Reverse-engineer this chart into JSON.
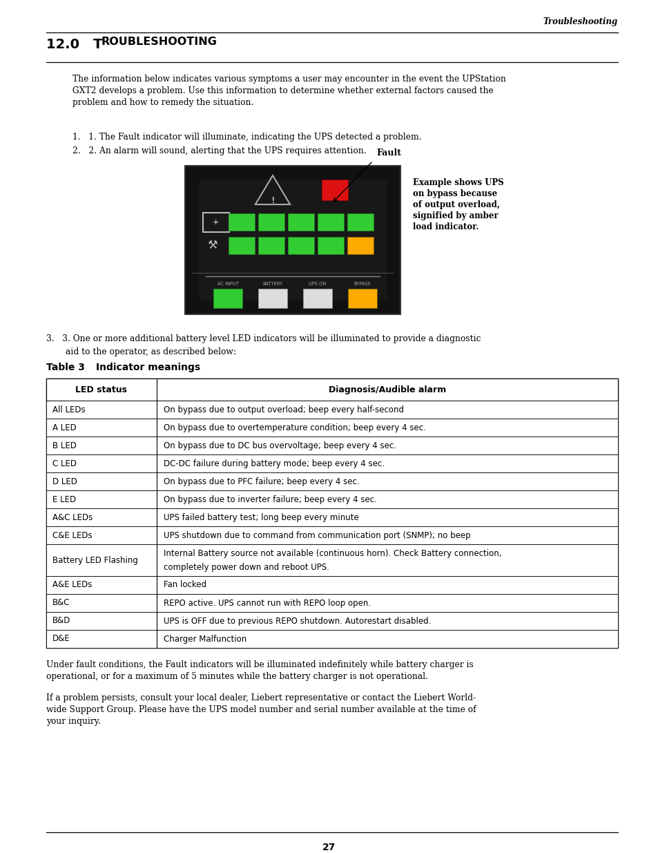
{
  "header_text": "Troubleshooting",
  "title_number": "12.0",
  "title_sc": "TROUBLESHOOTING",
  "intro_paragraph": "The information below indicates various symptoms a user may encounter in the event the UPStation GXT2 develops a problem. Use this information to determine whether external factors caused the problem and how to remedy the situation.",
  "list_item1": "1.   1. The Fault indicator will illuminate, indicating the UPS detected a problem.",
  "list_item2": "2.   2. An alarm will sound, alerting that the UPS requires attention.",
  "fault_label": "Fault",
  "side_note_lines": [
    "Example shows UPS",
    "on bypass because",
    "of output overload,",
    "signified by amber",
    "load indicator."
  ],
  "item3_line1": "3.   3. One or more additional battery level LED indicators will be illuminated to provide a diagnostic",
  "item3_line2": "     aid to the operator, as described below:",
  "table_caption_number": "Table 3",
  "table_caption_title": "Indicator meanings",
  "table_header_col1": "LED status",
  "table_header_col2": "Diagnosis/Audible alarm",
  "table_rows": [
    [
      "All LEDs",
      "On bypass due to output overload; beep every half-second"
    ],
    [
      "A LED",
      "On bypass due to overtemperature condition; beep every 4 sec."
    ],
    [
      "B LED",
      "On bypass due to DC bus overvoltage; beep every 4 sec."
    ],
    [
      "C LED",
      "DC-DC failure during battery mode; beep every 4 sec."
    ],
    [
      "D LED",
      "On bypass due to PFC failure; beep every 4 sec."
    ],
    [
      "E LED",
      "On bypass due to inverter failure; beep every 4 sec."
    ],
    [
      "A&C LEDs",
      "UPS failed battery test; long beep every minute"
    ],
    [
      "C&E LEDs",
      "UPS shutdown due to command from communication port (SNMP); no beep"
    ],
    [
      "Battery LED Flashing",
      "Internal Battery source not available (continuous horn). Check Battery connection,\ncompletely power down and reboot UPS."
    ],
    [
      "A&E LEDs",
      "Fan locked"
    ],
    [
      "B&C",
      "REPO active. UPS cannot run with REPO loop open."
    ],
    [
      "B&D",
      "UPS is OFF due to previous REPO shutdown. Autorestart disabled."
    ],
    [
      "D&E",
      "Charger Malfunction"
    ]
  ],
  "footer_para1": "Under fault conditions, the Fault indicators will be illuminated indefinitely while battery charger is operational, or for a maximum of 5 minutes while the battery charger is not operational.",
  "footer_para2": "If a problem persists, consult your local dealer, Liebert representative or contact the Liebert Worldwide Support Group. Please have the UPS model number and serial number available at the time of your inquiry.",
  "page_number": "27",
  "bg_color": "#ffffff",
  "text_color": "#000000",
  "panel_bg": "#111111",
  "panel_border": "#444444",
  "led_green": "#33cc33",
  "led_amber": "#ffaa00",
  "led_red": "#dd1111",
  "led_white": "#dddddd"
}
